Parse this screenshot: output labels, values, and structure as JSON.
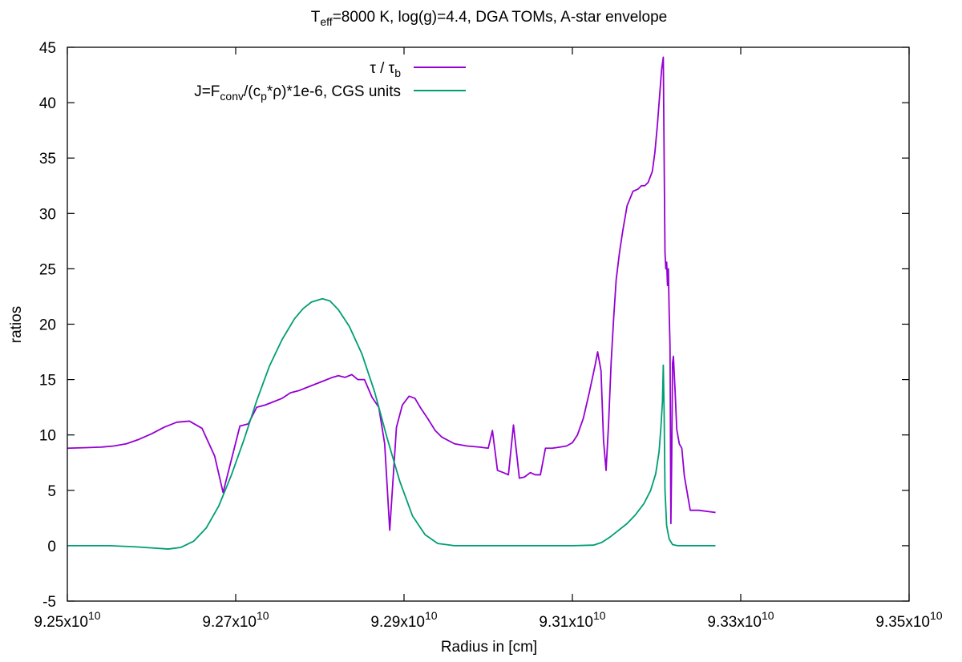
{
  "chart_data": {
    "type": "line",
    "title": {
      "parts": [
        {
          "text": "T",
          "style": "normal"
        },
        {
          "text": "eff",
          "style": "sub"
        },
        {
          "text": "=8000 K, log(g)=4.4, DGA TOMs, A-star envelope",
          "style": "normal"
        }
      ]
    },
    "xlabel": "Radius in [cm]",
    "ylabel": "ratios",
    "xlim": [
      92500000000.0,
      93500000000.0
    ],
    "ylim": [
      -5,
      45
    ],
    "x_ticks": [
      {
        "value": 92500000000.0,
        "mantissa": "9.25x10",
        "exp": "10"
      },
      {
        "value": 92700000000.0,
        "mantissa": "9.27x10",
        "exp": "10"
      },
      {
        "value": 92900000000.0,
        "mantissa": "9.29x10",
        "exp": "10"
      },
      {
        "value": 93100000000.0,
        "mantissa": "9.31x10",
        "exp": "10"
      },
      {
        "value": 93300000000.0,
        "mantissa": "9.33x10",
        "exp": "10"
      },
      {
        "value": 93500000000.0,
        "mantissa": "9.35x10",
        "exp": "10"
      }
    ],
    "y_ticks": [
      {
        "value": -5,
        "label": "-5"
      },
      {
        "value": 0,
        "label": "0"
      },
      {
        "value": 5,
        "label": "5"
      },
      {
        "value": 10,
        "label": "10"
      },
      {
        "value": 15,
        "label": "15"
      },
      {
        "value": 20,
        "label": "20"
      },
      {
        "value": 25,
        "label": "25"
      },
      {
        "value": 30,
        "label": "30"
      },
      {
        "value": 35,
        "label": "35"
      },
      {
        "value": 40,
        "label": "40"
      },
      {
        "value": 45,
        "label": "45"
      }
    ],
    "legend_position": "top-center",
    "series": [
      {
        "name": "tau-ratio",
        "color": "#9400d3",
        "legend": [
          {
            "text": "τ / τ",
            "style": "normal"
          },
          {
            "text": "b",
            "style": "sub"
          }
        ],
        "points": [
          [
            92500000000.0,
            8.8
          ],
          [
            92520000000.0,
            8.85
          ],
          [
            92540000000.0,
            8.9
          ],
          [
            92555000000.0,
            9.0
          ],
          [
            92570000000.0,
            9.2
          ],
          [
            92585000000.0,
            9.6
          ],
          [
            92600000000.0,
            10.1
          ],
          [
            92615000000.0,
            10.7
          ],
          [
            92630000000.0,
            11.15
          ],
          [
            92645000000.0,
            11.25
          ],
          [
            92660000000.0,
            10.6
          ],
          [
            92675000000.0,
            8.1
          ],
          [
            92685000000.0,
            4.8
          ],
          [
            92695000000.0,
            7.8
          ],
          [
            92705000000.0,
            10.8
          ],
          [
            92715000000.0,
            11.0
          ],
          [
            92725000000.0,
            12.5
          ],
          [
            92735000000.0,
            12.7
          ],
          [
            92745000000.0,
            13.0
          ],
          [
            92755000000.0,
            13.3
          ],
          [
            92765000000.0,
            13.8
          ],
          [
            92775000000.0,
            14.0
          ],
          [
            92785000000.0,
            14.3
          ],
          [
            92795000000.0,
            14.6
          ],
          [
            92805000000.0,
            14.9
          ],
          [
            92815000000.0,
            15.2
          ],
          [
            92822000000.0,
            15.35
          ],
          [
            92830000000.0,
            15.2
          ],
          [
            92838000000.0,
            15.45
          ],
          [
            92845000000.0,
            15.0
          ],
          [
            92853000000.0,
            15.0
          ],
          [
            92862000000.0,
            13.4
          ],
          [
            92870000000.0,
            12.5
          ],
          [
            92877000000.0,
            9.2
          ],
          [
            92883000000.0,
            1.4
          ],
          [
            92891000000.0,
            10.7
          ],
          [
            92898000000.0,
            12.7
          ],
          [
            92906000000.0,
            13.5
          ],
          [
            92913000000.0,
            13.3
          ],
          [
            92920000000.0,
            12.4
          ],
          [
            92928000000.0,
            11.5
          ],
          [
            92937000000.0,
            10.4
          ],
          [
            92945000000.0,
            9.8
          ],
          [
            92960000000.0,
            9.2
          ],
          [
            92975000000.0,
            9.0
          ],
          [
            92990000000.0,
            8.9
          ],
          [
            93000000000.0,
            8.8
          ],
          [
            93005000000.0,
            10.4
          ],
          [
            93011000000.0,
            6.8
          ],
          [
            93018000000.0,
            6.6
          ],
          [
            93024000000.0,
            6.4
          ],
          [
            93030000000.0,
            10.9
          ],
          [
            93037000000.0,
            6.1
          ],
          [
            93043000000.0,
            6.2
          ],
          [
            93050000000.0,
            6.6
          ],
          [
            93056000000.0,
            6.4
          ],
          [
            93062000000.0,
            6.4
          ],
          [
            93068000000.0,
            8.8
          ],
          [
            93076000000.0,
            8.8
          ],
          [
            93085000000.0,
            8.9
          ],
          [
            93093000000.0,
            9.0
          ],
          [
            93100000000.0,
            9.3
          ],
          [
            93106000000.0,
            10.0
          ],
          [
            93113000000.0,
            11.5
          ],
          [
            93120000000.0,
            13.8
          ],
          [
            93127000000.0,
            16.3
          ],
          [
            93130000000.0,
            17.5
          ],
          [
            93134000000.0,
            15.8
          ],
          [
            93137000000.0,
            9.5
          ],
          [
            93140000000.0,
            6.8
          ],
          [
            93143000000.0,
            11.0
          ],
          [
            93146000000.0,
            16.5
          ],
          [
            93149000000.0,
            20.5
          ],
          [
            93152000000.0,
            24.0
          ],
          [
            93156000000.0,
            26.5
          ],
          [
            93160000000.0,
            28.5
          ],
          [
            93165000000.0,
            30.7
          ],
          [
            93172000000.0,
            32.0
          ],
          [
            93178000000.0,
            32.2
          ],
          [
            93182000000.0,
            32.5
          ],
          [
            93186000000.0,
            32.5
          ],
          [
            93190000000.0,
            32.8
          ],
          [
            93195000000.0,
            33.8
          ],
          [
            93198000000.0,
            35.5
          ],
          [
            93201000000.0,
            38.0
          ],
          [
            93204000000.0,
            41.0
          ],
          [
            93206000000.0,
            43.0
          ],
          [
            93208000000.0,
            44.1
          ],
          [
            93209000000.0,
            35.0
          ],
          [
            93210000000.0,
            26.5
          ],
          [
            93211000000.0,
            25.0
          ],
          [
            93212000000.0,
            25.6
          ],
          [
            93213000000.0,
            23.5
          ],
          [
            93214000000.0,
            25.0
          ],
          [
            93215000000.0,
            21.0
          ],
          [
            93216000000.0,
            18.0
          ],
          [
            93216500000.0,
            10.0
          ],
          [
            93217000000.0,
            2.0
          ],
          [
            93218000000.0,
            8.0
          ],
          [
            93219000000.0,
            16.5
          ],
          [
            93220000000.0,
            17.1
          ],
          [
            93222000000.0,
            14.0
          ],
          [
            93224000000.0,
            10.5
          ],
          [
            93227000000.0,
            9.2
          ],
          [
            93230000000.0,
            8.8
          ],
          [
            93233000000.0,
            6.3
          ],
          [
            93240000000.0,
            3.2
          ],
          [
            93250000000.0,
            3.2
          ],
          [
            93270000000.0,
            3.0
          ]
        ]
      },
      {
        "name": "J-flux",
        "color": "#009e73",
        "legend": [
          {
            "text": "J=F",
            "style": "normal"
          },
          {
            "text": "conv",
            "style": "sub"
          },
          {
            "text": "/(c",
            "style": "normal"
          },
          {
            "text": "p",
            "style": "sub"
          },
          {
            "text": "*ρ)*1e-6, CGS units",
            "style": "normal"
          }
        ],
        "points": [
          [
            92500000000.0,
            0.0
          ],
          [
            92550000000.0,
            0.0
          ],
          [
            92580000000.0,
            -0.1
          ],
          [
            92600000000.0,
            -0.2
          ],
          [
            92620000000.0,
            -0.3
          ],
          [
            92635000000.0,
            -0.15
          ],
          [
            92650000000.0,
            0.4
          ],
          [
            92665000000.0,
            1.6
          ],
          [
            92680000000.0,
            3.6
          ],
          [
            92695000000.0,
            6.4
          ],
          [
            92710000000.0,
            9.6
          ],
          [
            92725000000.0,
            13.1
          ],
          [
            92740000000.0,
            16.2
          ],
          [
            92755000000.0,
            18.6
          ],
          [
            92770000000.0,
            20.5
          ],
          [
            92780000000.0,
            21.4
          ],
          [
            92790000000.0,
            22.0
          ],
          [
            92803000000.0,
            22.3
          ],
          [
            92812000000.0,
            22.1
          ],
          [
            92822000000.0,
            21.3
          ],
          [
            92835000000.0,
            19.8
          ],
          [
            92850000000.0,
            17.3
          ],
          [
            92865000000.0,
            13.9
          ],
          [
            92880000000.0,
            9.7
          ],
          [
            92895000000.0,
            5.8
          ],
          [
            92910000000.0,
            2.7
          ],
          [
            92925000000.0,
            1.0
          ],
          [
            92940000000.0,
            0.2
          ],
          [
            92960000000.0,
            0.0
          ],
          [
            93000000000.0,
            0.0
          ],
          [
            93050000000.0,
            0.0
          ],
          [
            93100000000.0,
            0.0
          ],
          [
            93125000000.0,
            0.05
          ],
          [
            93135000000.0,
            0.3
          ],
          [
            93145000000.0,
            0.8
          ],
          [
            93155000000.0,
            1.4
          ],
          [
            93165000000.0,
            2.0
          ],
          [
            93175000000.0,
            2.8
          ],
          [
            93185000000.0,
            3.8
          ],
          [
            93193000000.0,
            5.0
          ],
          [
            93199000000.0,
            6.5
          ],
          [
            93203000000.0,
            8.5
          ],
          [
            93205000000.0,
            10.5
          ],
          [
            93207000000.0,
            13.0
          ],
          [
            93208000000.0,
            16.3
          ],
          [
            93209000000.0,
            12.0
          ],
          [
            93210000000.0,
            5.0
          ],
          [
            93212000000.0,
            1.8
          ],
          [
            93215000000.0,
            0.6
          ],
          [
            93219000000.0,
            0.1
          ],
          [
            93225000000.0,
            0.0
          ],
          [
            93270000000.0,
            0.0
          ]
        ]
      }
    ]
  }
}
